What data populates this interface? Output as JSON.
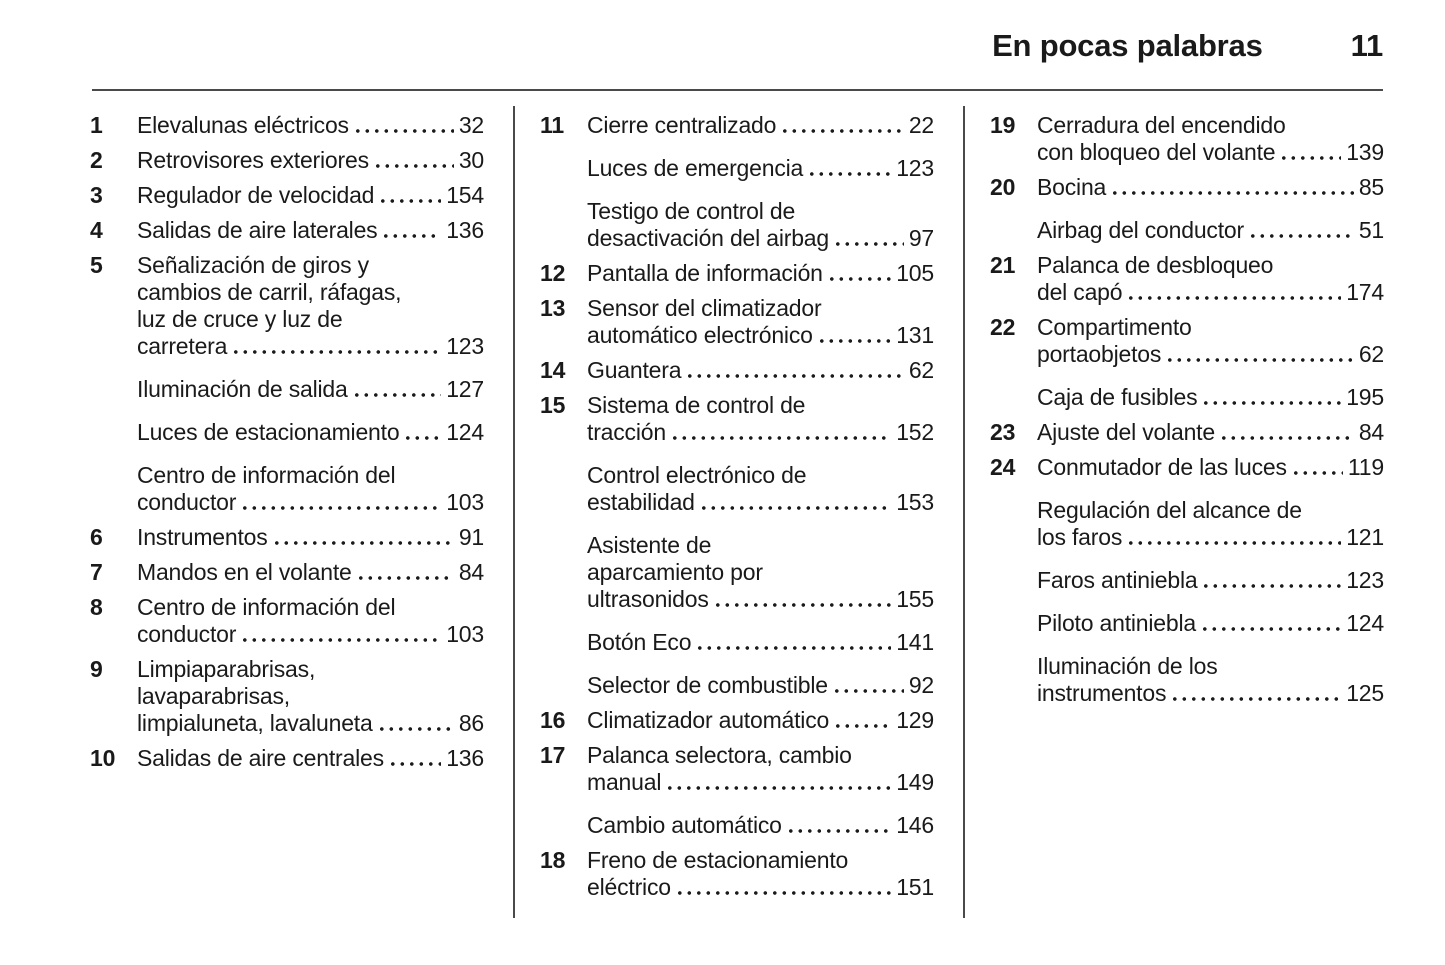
{
  "header": {
    "title": "En pocas palabras",
    "page_number": "11"
  },
  "colors": {
    "text": "#1a1a1a",
    "rule": "#4a4a4a"
  },
  "columns": [
    {
      "entries": [
        {
          "num": "1",
          "pre": [],
          "last": "Elevalunas eléctricos",
          "page": "32"
        },
        {
          "num": "2",
          "pre": [],
          "last": "Retrovisores exteriores",
          "page": "30"
        },
        {
          "num": "3",
          "pre": [],
          "last": "Regulador de velocidad",
          "page": "154"
        },
        {
          "num": "4",
          "pre": [],
          "last": "Salidas de aire laterales",
          "page": "136"
        },
        {
          "num": "5",
          "pre": [
            "Señalización de giros y",
            "cambios de carril, ráfagas,",
            "luz de cruce y luz de"
          ],
          "last": "carretera",
          "page": "123"
        },
        {
          "num": "",
          "pre": [],
          "last": "Iluminación de salida",
          "page": "127"
        },
        {
          "num": "",
          "pre": [],
          "last": "Luces de estacionamiento",
          "page": "124"
        },
        {
          "num": "",
          "pre": [
            "Centro de información del"
          ],
          "last": "conductor",
          "page": "103"
        },
        {
          "num": "6",
          "pre": [],
          "last": "Instrumentos",
          "page": "91"
        },
        {
          "num": "7",
          "pre": [],
          "last": "Mandos en el volante",
          "page": "84"
        },
        {
          "num": "8",
          "pre": [
            "Centro de información del"
          ],
          "last": "conductor",
          "page": "103"
        },
        {
          "num": "9",
          "pre": [
            "Limpiaparabrisas,",
            "lavaparabrisas,"
          ],
          "last": "limpialuneta, lavaluneta",
          "page": "86"
        },
        {
          "num": "10",
          "pre": [],
          "last": "Salidas de aire centrales",
          "page": "136"
        }
      ]
    },
    {
      "entries": [
        {
          "num": "11",
          "pre": [],
          "last": "Cierre centralizado",
          "page": "22"
        },
        {
          "num": "",
          "pre": [],
          "last": "Luces de emergencia",
          "page": "123"
        },
        {
          "num": "",
          "pre": [
            "Testigo de control de"
          ],
          "last": "desactivación del airbag",
          "page": "97"
        },
        {
          "num": "12",
          "pre": [],
          "last": "Pantalla de información",
          "page": "105"
        },
        {
          "num": "13",
          "pre": [
            "Sensor del climatizador"
          ],
          "last": "automático electrónico",
          "page": "131"
        },
        {
          "num": "14",
          "pre": [],
          "last": "Guantera",
          "page": "62"
        },
        {
          "num": "15",
          "pre": [
            "Sistema de control de"
          ],
          "last": "tracción",
          "page": "152"
        },
        {
          "num": "",
          "pre": [
            "Control electrónico de"
          ],
          "last": "estabilidad",
          "page": "153"
        },
        {
          "num": "",
          "pre": [
            "Asistente de",
            "aparcamiento por"
          ],
          "last": "ultrasonidos",
          "page": "155"
        },
        {
          "num": "",
          "pre": [],
          "last": "Botón Eco",
          "page": "141"
        },
        {
          "num": "",
          "pre": [],
          "last": "Selector de combustible",
          "page": "92"
        },
        {
          "num": "16",
          "pre": [],
          "last": "Climatizador automático",
          "page": "129"
        },
        {
          "num": "17",
          "pre": [
            "Palanca selectora, cambio"
          ],
          "last": "manual",
          "page": "149"
        },
        {
          "num": "",
          "pre": [],
          "last": "Cambio automático",
          "page": "146"
        },
        {
          "num": "18",
          "pre": [
            "Freno de estacionamiento"
          ],
          "last": "eléctrico",
          "page": "151"
        }
      ]
    },
    {
      "entries": [
        {
          "num": "19",
          "pre": [
            "Cerradura del encendido"
          ],
          "last": "con bloqueo del volante",
          "page": "139"
        },
        {
          "num": "20",
          "pre": [],
          "last": "Bocina",
          "page": "85"
        },
        {
          "num": "",
          "pre": [],
          "last": "Airbag del conductor",
          "page": "51"
        },
        {
          "num": "21",
          "pre": [
            "Palanca de desbloqueo"
          ],
          "last": "del capó",
          "page": "174"
        },
        {
          "num": "22",
          "pre": [
            "Compartimento"
          ],
          "last": "portaobjetos",
          "page": "62"
        },
        {
          "num": "",
          "pre": [],
          "last": "Caja de fusibles",
          "page": "195"
        },
        {
          "num": "23",
          "pre": [],
          "last": "Ajuste del volante",
          "page": "84"
        },
        {
          "num": "24",
          "pre": [],
          "last": "Conmutador de las luces",
          "page": "119"
        },
        {
          "num": "",
          "pre": [
            "Regulación del alcance de"
          ],
          "last": "los faros",
          "page": "121"
        },
        {
          "num": "",
          "pre": [],
          "last": "Faros antiniebla",
          "page": "123"
        },
        {
          "num": "",
          "pre": [],
          "last": "Piloto antiniebla",
          "page": "124"
        },
        {
          "num": "",
          "pre": [
            "Iluminación de los"
          ],
          "last": "instrumentos",
          "page": "125"
        }
      ]
    }
  ]
}
